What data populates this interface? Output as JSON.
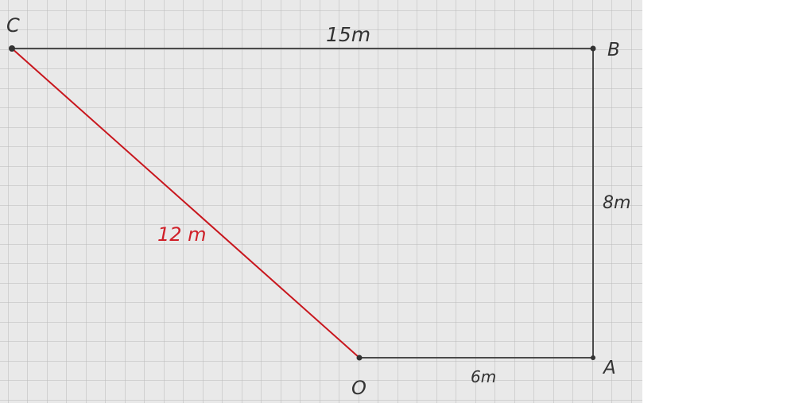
{
  "diagram": {
    "points": {
      "c": "C",
      "b": "B",
      "a": "A",
      "o": "O"
    },
    "edges": {
      "cb": "15m",
      "ba": "8m",
      "oa": "6m",
      "co": "12 m"
    },
    "colors": {
      "paper": "#e9e9e9",
      "grid": "#b9b9b9",
      "ink": "#4a4a4a",
      "red": "#c8161d",
      "red_text": "#d01f28"
    }
  }
}
